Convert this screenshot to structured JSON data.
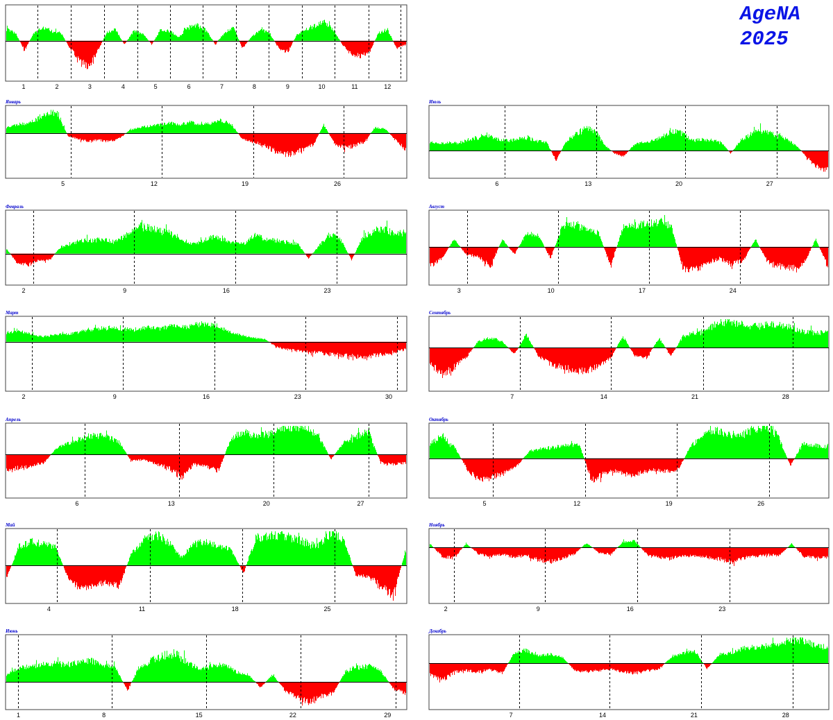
{
  "brand": {
    "name": "AgeNA",
    "year": "2025"
  },
  "colors": {
    "positive": "#00ff00",
    "negative": "#ff0000",
    "axis": "#000000",
    "frame": "#404040",
    "title": "#0000cc"
  },
  "chart_data": [
    {
      "type": "bar",
      "title": "",
      "xticks": [
        "1",
        "2",
        "3",
        "4",
        "5",
        "6",
        "7",
        "8",
        "9",
        "10",
        "11",
        "12"
      ],
      "description": "Year overview: daily oscillation, green above baseline, red below",
      "profile": [
        0.3,
        0.2,
        -0.25,
        0.2,
        0.35,
        0.25,
        0.2,
        -0.2,
        -0.5,
        -0.7,
        -0.3,
        0.2,
        0.3,
        -0.1,
        0.25,
        0.2,
        -0.1,
        0.3,
        0.25,
        0.1,
        0.35,
        0.4,
        0.3,
        -0.1,
        0.2,
        0.35,
        -0.2,
        0.1,
        0.3,
        0.2,
        -0.2,
        -0.3,
        0.15,
        0.3,
        0.4,
        0.5,
        0.3,
        -0.1,
        -0.35,
        -0.4,
        -0.3,
        0.2,
        0.3,
        -0.2,
        -0.1
      ]
    },
    {
      "type": "bar",
      "title": "Январь",
      "xticks": [
        "5",
        "12",
        "19",
        "26"
      ],
      "profile": [
        0.2,
        0.3,
        0.35,
        0.5,
        0.75,
        0.7,
        -0.1,
        -0.2,
        -0.3,
        -0.25,
        -0.3,
        -0.2,
        0.1,
        0.2,
        0.25,
        0.3,
        0.35,
        0.3,
        0.4,
        0.3,
        0.35,
        0.45,
        0.3,
        -0.2,
        -0.3,
        -0.4,
        -0.6,
        -0.8,
        -0.7,
        -0.6,
        -0.4,
        0.3,
        -0.35,
        -0.5,
        -0.45,
        -0.3,
        0.2,
        0.15,
        -0.25,
        -0.6
      ]
    },
    {
      "type": "bar",
      "title": "Июль",
      "xticks": [
        "6",
        "13",
        "20",
        "27"
      ],
      "profile": [
        0.3,
        0.25,
        0.3,
        0.25,
        0.4,
        0.45,
        0.5,
        0.4,
        0.35,
        0.4,
        0.45,
        0.35,
        0.3,
        -0.35,
        0.3,
        0.6,
        0.75,
        0.7,
        0.2,
        -0.1,
        -0.2,
        0.2,
        0.3,
        0.35,
        0.5,
        0.7,
        0.6,
        0.35,
        0.4,
        0.35,
        0.3,
        -0.1,
        0.35,
        0.55,
        0.7,
        0.6,
        0.5,
        0.35,
        0.1,
        -0.3,
        -0.6,
        -0.7
      ]
    },
    {
      "type": "bar",
      "title": "Февраль",
      "xticks": [
        "2",
        "9",
        "16",
        "23"
      ],
      "profile": [
        0.15,
        -0.3,
        -0.35,
        -0.2,
        -0.2,
        0.2,
        0.3,
        0.4,
        0.4,
        0.45,
        0.35,
        0.55,
        0.85,
        0.8,
        0.7,
        0.65,
        0.5,
        0.3,
        0.35,
        0.5,
        0.45,
        0.35,
        0.3,
        0.55,
        0.45,
        0.4,
        0.35,
        0.3,
        -0.15,
        0.25,
        0.6,
        0.4,
        -0.2,
        0.5,
        0.7,
        0.75,
        0.6,
        0.65
      ]
    },
    {
      "type": "bar",
      "title": "Август",
      "xticks": [
        "3",
        "10",
        "17",
        "24"
      ],
      "profile": [
        -0.5,
        -0.3,
        0.2,
        -0.2,
        -0.25,
        -0.5,
        0.2,
        -0.2,
        0.35,
        0.3,
        -0.3,
        0.55,
        0.6,
        0.45,
        0.35,
        -0.5,
        0.5,
        0.55,
        0.6,
        0.65,
        0.55,
        -0.55,
        -0.6,
        -0.4,
        -0.3,
        -0.45,
        -0.35,
        0.2,
        -0.4,
        -0.5,
        -0.55,
        -0.45,
        0.2,
        -0.5
      ]
    },
    {
      "type": "bar",
      "title": "Март",
      "xticks": [
        "2",
        "9",
        "16",
        "23",
        "30"
      ],
      "profile": [
        0.35,
        0.45,
        0.3,
        0.2,
        0.25,
        0.3,
        0.35,
        0.45,
        0.5,
        0.55,
        0.5,
        0.45,
        0.55,
        0.5,
        0.6,
        0.55,
        0.65,
        0.7,
        0.6,
        0.4,
        0.25,
        0.15,
        0.1,
        -0.2,
        -0.3,
        -0.35,
        -0.4,
        -0.45,
        -0.5,
        -0.55,
        -0.6,
        -0.55,
        -0.5,
        -0.4,
        -0.3
      ]
    },
    {
      "type": "bar",
      "title": "Сентябрь",
      "xticks": [
        "7",
        "14",
        "21",
        "28"
      ],
      "profile": [
        -0.5,
        -0.8,
        -0.6,
        -0.3,
        0.2,
        0.3,
        0.2,
        -0.2,
        0.4,
        -0.25,
        -0.5,
        -0.6,
        -0.75,
        -0.7,
        -0.55,
        -0.3,
        0.35,
        -0.25,
        -0.3,
        0.3,
        -0.25,
        0.35,
        0.45,
        0.55,
        0.8,
        0.75,
        0.7,
        0.65,
        0.7,
        0.75,
        0.6,
        0.5,
        0.45,
        0.5
      ]
    },
    {
      "type": "bar",
      "title": "Апрель",
      "xticks": [
        "6",
        "13",
        "20",
        "27"
      ],
      "profile": [
        -0.5,
        -0.4,
        -0.35,
        -0.25,
        0.2,
        0.35,
        0.5,
        0.6,
        0.55,
        0.4,
        -0.2,
        -0.15,
        -0.3,
        -0.4,
        -0.7,
        -0.3,
        -0.35,
        -0.5,
        0.5,
        0.7,
        0.55,
        0.65,
        0.75,
        0.85,
        0.8,
        0.6,
        -0.15,
        0.35,
        0.55,
        0.7,
        -0.25,
        -0.3,
        -0.25
      ]
    },
    {
      "type": "bar",
      "title": "Октябрь",
      "xticks": [
        "5",
        "12",
        "19",
        "26"
      ],
      "profile": [
        0.4,
        0.6,
        0.3,
        -0.3,
        -0.6,
        -0.5,
        -0.4,
        -0.2,
        0.2,
        0.25,
        0.3,
        0.35,
        0.4,
        -0.6,
        -0.4,
        -0.35,
        -0.45,
        -0.4,
        -0.3,
        -0.35,
        -0.3,
        0.35,
        0.6,
        0.75,
        0.65,
        0.6,
        0.8,
        0.9,
        0.6,
        -0.2,
        0.4,
        0.35,
        0.3
      ]
    },
    {
      "type": "bar",
      "title": "Май",
      "xticks": [
        "4",
        "11",
        "18",
        "25"
      ],
      "profile": [
        -0.35,
        0.5,
        0.6,
        0.55,
        0.45,
        -0.4,
        -0.6,
        -0.5,
        -0.45,
        -0.55,
        0.3,
        0.65,
        0.8,
        0.6,
        0.2,
        0.55,
        0.6,
        0.5,
        0.4,
        -0.2,
        0.7,
        0.75,
        0.8,
        0.7,
        0.6,
        0.5,
        0.85,
        0.7,
        -0.25,
        -0.3,
        -0.5,
        -0.8,
        0.4
      ]
    },
    {
      "type": "bar",
      "title": "Ноябрь",
      "xticks": [
        "2",
        "9",
        "16",
        "23"
      ],
      "profile": [
        0.2,
        -0.5,
        -0.6,
        0.2,
        -0.35,
        -0.5,
        -0.4,
        -0.55,
        -0.45,
        -0.7,
        -0.8,
        -0.6,
        -0.35,
        0.25,
        -0.3,
        -0.4,
        0.3,
        0.35,
        -0.4,
        -0.55,
        -0.6,
        -0.5,
        -0.45,
        -0.55,
        -0.65,
        -0.8,
        -0.6,
        -0.5,
        -0.4,
        -0.45,
        0.2,
        -0.5,
        -0.6,
        -0.55
      ]
    },
    {
      "type": "bar",
      "title": "Июнь",
      "xticks": [
        "1",
        "8",
        "15",
        "22",
        "29"
      ],
      "profile": [
        0.25,
        0.5,
        0.55,
        0.6,
        0.65,
        0.6,
        0.7,
        0.75,
        0.6,
        0.5,
        -0.3,
        0.55,
        0.75,
        0.95,
        1.0,
        0.65,
        0.45,
        0.55,
        0.6,
        0.35,
        0.25,
        -0.2,
        0.25,
        -0.3,
        -0.55,
        -0.7,
        -0.5,
        -0.4,
        0.35,
        0.5,
        0.55,
        0.35,
        -0.25,
        -0.4
      ]
    },
    {
      "type": "bar",
      "title": "Декабрь",
      "xticks": [
        "7",
        "14",
        "21",
        "28"
      ],
      "profile": [
        -0.4,
        -0.6,
        -0.3,
        -0.25,
        -0.3,
        -0.2,
        -0.35,
        0.35,
        0.45,
        0.25,
        0.3,
        0.2,
        -0.25,
        -0.3,
        -0.25,
        -0.2,
        -0.3,
        -0.35,
        -0.25,
        -0.2,
        0.2,
        0.35,
        0.4,
        -0.2,
        0.3,
        0.35,
        0.5,
        0.55,
        0.6,
        0.7,
        0.8,
        0.75,
        0.6,
        0.55
      ]
    }
  ]
}
